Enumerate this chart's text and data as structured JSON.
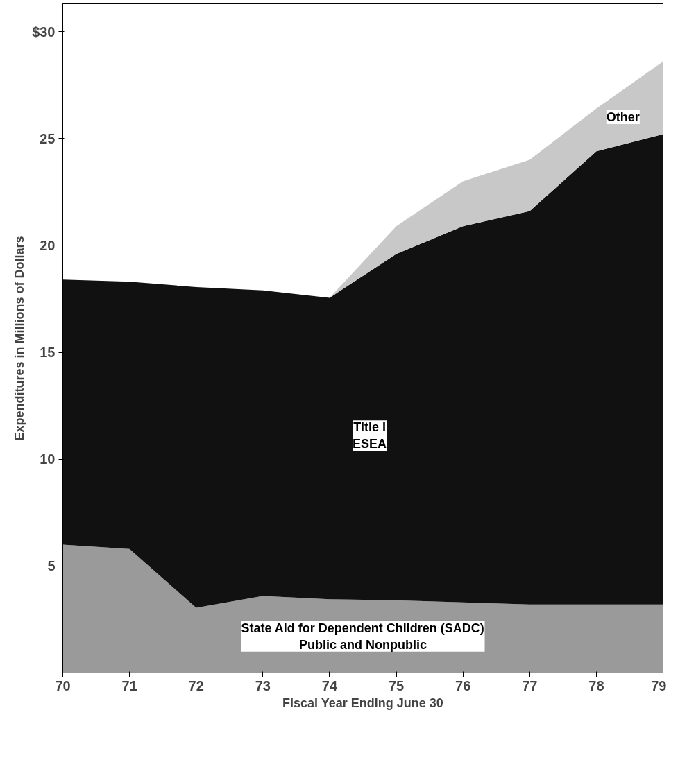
{
  "chart_data": {
    "type": "area",
    "stacked": true,
    "x": [
      70,
      71,
      72,
      73,
      74,
      75,
      76,
      77,
      78,
      79
    ],
    "xlabel": "Fiscal Year Ending June 30",
    "ylabel": "Expenditures in Millions of Dollars",
    "xlim": [
      70,
      79
    ],
    "xticks": [
      70,
      71,
      72,
      73,
      74,
      75,
      76,
      77,
      78,
      79
    ],
    "ylim": [
      0,
      31.3
    ],
    "yticks": [
      5,
      10,
      15,
      20,
      25,
      {
        "value": 30,
        "label": "$30"
      }
    ],
    "grid": false,
    "series": [
      {
        "name": "State Aid for Dependent Children (SADC)\nPublic and Nonpublic",
        "color": "#9a9a9a",
        "values": [
          6.0,
          5.8,
          3.05,
          3.6,
          3.45,
          3.4,
          3.3,
          3.2,
          3.2,
          3.2
        ]
      },
      {
        "name": "Title I\nESEA",
        "color": "#111111",
        "values": [
          12.4,
          12.5,
          15.0,
          14.3,
          14.1,
          16.2,
          17.6,
          18.4,
          21.2,
          22.0
        ]
      },
      {
        "name": "Other",
        "color": "#c8c8c8",
        "values": [
          0,
          0,
          0,
          0,
          0,
          1.3,
          2.1,
          2.4,
          2.0,
          3.4
        ]
      }
    ]
  }
}
